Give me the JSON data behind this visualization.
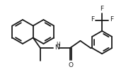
{
  "bg_color": "#ffffff",
  "line_color": "#1a1a1a",
  "line_width": 1.3,
  "font_size": 6.5,
  "figsize": [
    1.78,
    1.12
  ],
  "dpi": 100,
  "label_NH": "H",
  "label_N": "N",
  "label_O": "O",
  "label_F": "F"
}
